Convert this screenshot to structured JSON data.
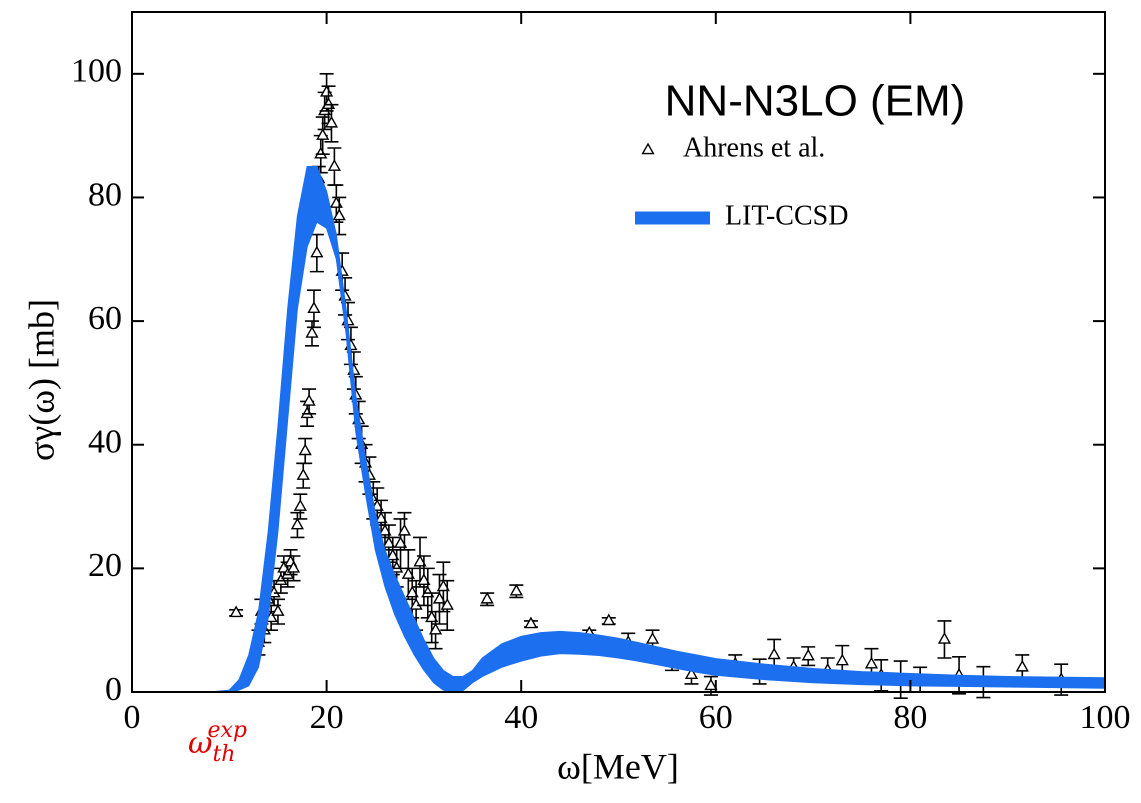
{
  "chart_data": {
    "type": "scatter",
    "title": "NN-N3LO (EM)",
    "xlabel": "ω[MeV]",
    "ylabel": "σγ(ω) [mb]",
    "annotation": {
      "text": "ω",
      "sub": "th",
      "sup": "exp"
    },
    "xlim": [
      0,
      100
    ],
    "ylim": [
      0,
      110
    ],
    "xticks": [
      0,
      20,
      40,
      60,
      80,
      100
    ],
    "yticks": [
      0,
      20,
      40,
      60,
      80,
      100
    ],
    "legend": "upper right",
    "series": [
      {
        "name": "Ahrens et al.",
        "type": "errorbar",
        "color": "#000000",
        "x": [
          10.7,
          13.0,
          13.3,
          13.6,
          14.0,
          14.3,
          14.6,
          15.0,
          15.3,
          15.6,
          16.0,
          16.3,
          16.6,
          17.0,
          17.3,
          17.6,
          17.8,
          18.0,
          18.2,
          18.5,
          18.7,
          19.0,
          19.2,
          19.4,
          19.6,
          19.8,
          20.0,
          20.2,
          20.5,
          20.8,
          21.0,
          21.3,
          21.6,
          21.9,
          22.2,
          22.5,
          22.8,
          23.0,
          23.3,
          23.6,
          24.0,
          24.4,
          24.8,
          25.2,
          25.6,
          26.0,
          26.4,
          26.8,
          27.2,
          27.6,
          28.0,
          28.4,
          28.8,
          29.2,
          29.6,
          30.0,
          30.4,
          30.8,
          31.2,
          31.6,
          32.0,
          32.4,
          36.5,
          39.5,
          41,
          42.5,
          44,
          47,
          49,
          51,
          53.5,
          55.5,
          57.5,
          59.5,
          62,
          64.5,
          66,
          68,
          69.5,
          71.5,
          73,
          76,
          77,
          79,
          81,
          83.5,
          85,
          87.5,
          91.5,
          95.5
        ],
        "values": [
          12.8,
          8,
          13,
          10,
          15,
          12,
          16,
          13,
          18,
          20,
          19,
          21,
          20,
          27,
          30,
          35,
          39,
          45,
          47,
          58,
          62,
          71,
          83,
          87,
          90,
          94,
          97,
          95,
          92,
          85,
          79,
          77,
          68,
          64,
          60,
          56,
          52,
          48,
          44,
          40,
          37,
          35,
          31,
          30,
          28,
          26,
          24,
          22,
          20,
          24,
          26,
          19,
          16,
          14,
          21,
          18,
          16,
          12,
          10,
          15,
          17,
          14,
          15,
          16.3,
          11,
          7.5,
          8.5,
          9.5,
          11.5,
          8,
          8.5,
          5,
          2.8,
          1,
          4.5,
          3.3,
          6,
          4,
          5.8,
          3.5,
          5,
          4.5,
          2.7,
          2,
          2,
          8.5,
          2.7,
          1.6,
          4,
          2
        ],
        "errors": [
          0.5,
          2,
          2,
          2,
          2,
          2,
          2,
          2,
          2,
          2,
          2,
          2,
          2,
          2,
          2,
          2,
          2,
          2,
          2,
          2,
          3,
          3,
          2,
          3,
          3,
          3,
          3,
          3,
          3,
          3,
          3,
          3,
          3,
          3,
          3,
          3,
          3,
          3,
          3,
          3,
          3,
          3,
          3,
          3,
          3,
          3,
          3,
          3,
          3,
          4,
          3,
          4,
          4,
          4,
          4,
          4,
          4,
          4,
          3,
          4,
          4,
          4,
          1,
          1,
          0.5,
          1,
          0.8,
          0.5,
          0.5,
          1.5,
          1.5,
          1.5,
          1.5,
          1.5,
          1.5,
          2,
          2.5,
          1.5,
          1.5,
          2,
          2.5,
          2.5,
          2.5,
          3,
          2,
          3,
          3,
          2.5,
          2,
          2.5
        ]
      },
      {
        "name": "LIT-CCSD",
        "type": "band",
        "color": "#1c6fee",
        "x": [
          8,
          10,
          11,
          12,
          13,
          14,
          15,
          16,
          17,
          18,
          19,
          20,
          21,
          22,
          23,
          24,
          25,
          26,
          27,
          28,
          29,
          30,
          31,
          32,
          33,
          34,
          35,
          36,
          38,
          40,
          42,
          44,
          46,
          48,
          50,
          52,
          54,
          56,
          58,
          60,
          65,
          70,
          75,
          80,
          85,
          90,
          95,
          100
        ],
        "upper": [
          0,
          0.3,
          2,
          6,
          13,
          26,
          43,
          62,
          77,
          85,
          85,
          81,
          74,
          62,
          48,
          38,
          29,
          23,
          19,
          15.5,
          12,
          8.5,
          5.5,
          3.5,
          2.5,
          2.5,
          3.5,
          5.5,
          7.8,
          9,
          9.6,
          9.8,
          9.6,
          9.2,
          8.7,
          8,
          7.3,
          6.6,
          6,
          5.4,
          4.5,
          3.8,
          3.3,
          3,
          2.7,
          2.5,
          2.4,
          2.3
        ],
        "lower": [
          0,
          0,
          0.3,
          1,
          4,
          12,
          26,
          44,
          62,
          72,
          76,
          75,
          70,
          58,
          42,
          32,
          23,
          17,
          12.5,
          9,
          6,
          3.5,
          1.5,
          0.3,
          0,
          0.2,
          1.5,
          2.5,
          4,
          5,
          5.8,
          6.2,
          6.1,
          5.9,
          5.5,
          5,
          4.4,
          3.8,
          3.2,
          2.7,
          2,
          1.5,
          1.2,
          1,
          0.9,
          0.8,
          0.7,
          0.6
        ]
      }
    ]
  }
}
